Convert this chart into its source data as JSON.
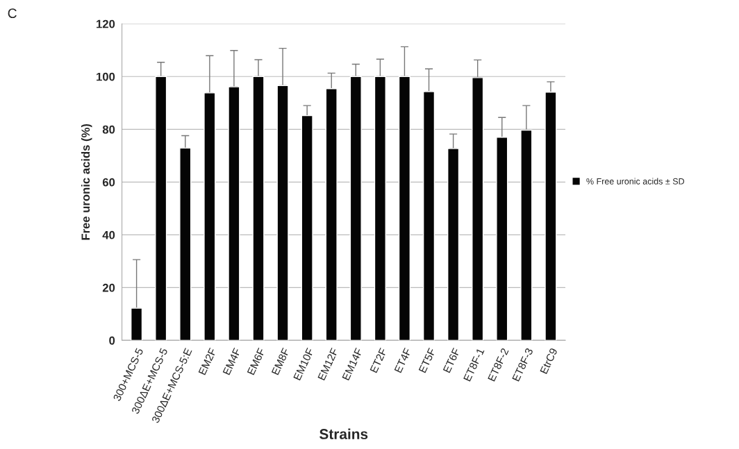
{
  "chart_data": {
    "type": "bar",
    "title": "C",
    "xlabel": "Strains",
    "ylabel": "Free uronic acids (%)",
    "categories": [
      "300+MCS-5",
      "300ΔE+MCS-5",
      "300ΔE+MCS-5:E",
      "EM2F",
      "EM4F",
      "EM6F",
      "EM8F",
      "EM10F",
      "EM12F",
      "EM14F",
      "ET2F",
      "ET4F",
      "ET5F",
      "ET6F",
      "ET8F-1",
      "ET8F-2",
      "ET8F-3",
      "EtrC9"
    ],
    "series": [
      {
        "name": "% Free uronic acids ± SD",
        "color": "#050505",
        "values": [
          12.2,
          100,
          72.9,
          93.8,
          96.1,
          100,
          96.6,
          85.2,
          95.4,
          100,
          100,
          100,
          94.3,
          72.7,
          99.6,
          77.0,
          79.7,
          94.1
        ],
        "errors": [
          [
            12.2,
            30.6
          ],
          [
            100,
            105.4
          ],
          [
            72.9,
            77.6
          ],
          [
            93.8,
            107.9
          ],
          [
            96.1,
            109.9
          ],
          [
            100,
            106.4
          ],
          [
            96.6,
            110.7
          ],
          [
            85.2,
            89.0
          ],
          [
            95.4,
            101.3
          ],
          [
            100,
            104.7
          ],
          [
            100,
            106.6
          ],
          [
            100,
            111.3
          ],
          [
            94.3,
            102.9
          ],
          [
            72.7,
            78.2
          ],
          [
            99.6,
            106.3
          ],
          [
            77.0,
            84.5
          ],
          [
            79.7,
            89.0
          ],
          [
            94.1,
            98.0
          ]
        ]
      }
    ],
    "ylim": [
      0,
      120
    ],
    "yticks": [
      0,
      20,
      40,
      60,
      80,
      100,
      120
    ],
    "grid": "y",
    "legend": "right"
  }
}
